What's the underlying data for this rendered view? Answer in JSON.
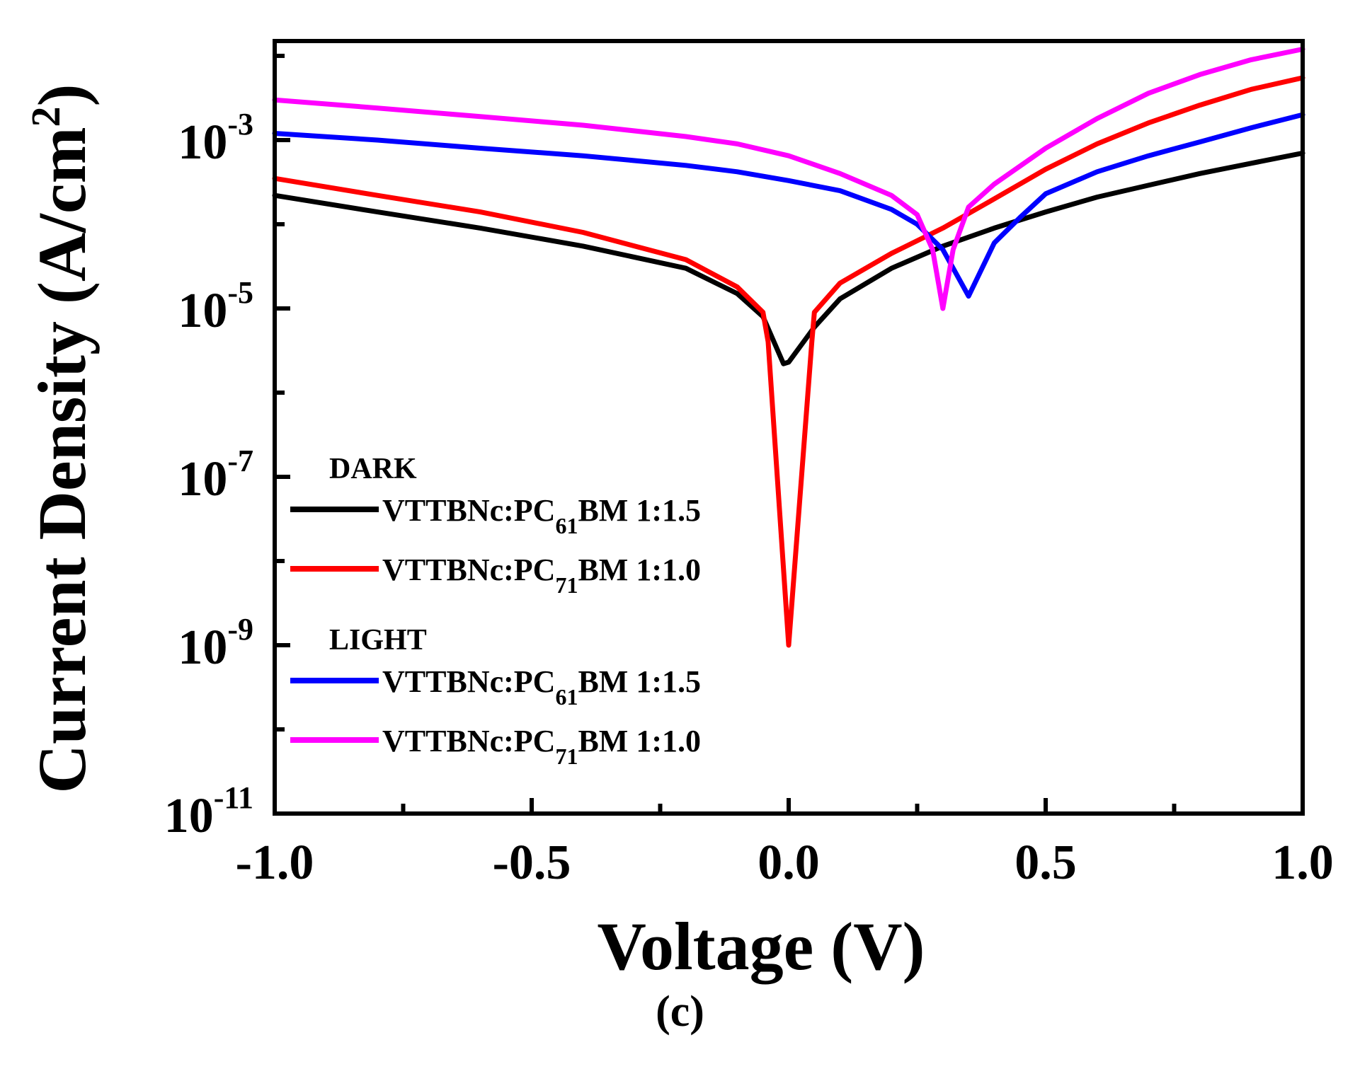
{
  "subfigure_label": "(c)",
  "chart_data": {
    "type": "line",
    "xlabel": "Voltage (V)",
    "ylabel": "Current Density (A/cm",
    "ylabel_sup": "2",
    "ylabel_close": ")",
    "xlim": [
      -1.0,
      1.0
    ],
    "ylim": [
      1e-11,
      0.015
    ],
    "yscale": "log",
    "x_ticks": [
      {
        "value": -1.0,
        "label": "-1.0"
      },
      {
        "value": -0.5,
        "label": "-0.5"
      },
      {
        "value": 0.0,
        "label": "0.0"
      },
      {
        "value": 0.5,
        "label": "0.5"
      },
      {
        "value": 1.0,
        "label": "1.0"
      }
    ],
    "y_ticks": [
      {
        "value": 1e-11,
        "base": "10",
        "exp": "-11"
      },
      {
        "value": 1e-09,
        "base": "10",
        "exp": "-9"
      },
      {
        "value": 1e-07,
        "base": "10",
        "exp": "-7"
      },
      {
        "value": 1e-05,
        "base": "10",
        "exp": "-5"
      },
      {
        "value": 0.001,
        "base": "10",
        "exp": "-3"
      }
    ],
    "legend": {
      "position": "bottom-left",
      "groups": [
        {
          "title": "DARK",
          "entries": [
            {
              "series": 0,
              "prefix": "VTTBNc:PC",
              "sub": "61",
              "suffix": "BM 1:1.5"
            },
            {
              "series": 1,
              "prefix": "VTTBNc:PC",
              "sub": "71",
              "suffix": "BM 1:1.0"
            }
          ]
        },
        {
          "title": "LIGHT",
          "entries": [
            {
              "series": 2,
              "prefix": "VTTBNc:PC",
              "sub": "61",
              "suffix": "BM 1:1.5"
            },
            {
              "series": 3,
              "prefix": "VTTBNc:PC",
              "sub": "71",
              "suffix": "BM 1:1.0"
            }
          ]
        }
      ]
    },
    "series": [
      {
        "name": "DARK VTTBNc:PC61BM 1:1.5",
        "color": "#000000",
        "x": [
          -1.0,
          -0.8,
          -0.6,
          -0.4,
          -0.2,
          -0.1,
          -0.05,
          -0.01,
          0.0,
          0.05,
          0.1,
          0.2,
          0.3,
          0.4,
          0.5,
          0.6,
          0.7,
          0.8,
          0.9,
          1.0
        ],
        "y": [
          0.00022,
          0.00014,
          9e-05,
          5.5e-05,
          3e-05,
          1.5e-05,
          8e-06,
          2.2e-06,
          2.3e-06,
          6e-06,
          1.3e-05,
          3e-05,
          5.5e-05,
          9e-05,
          0.00014,
          0.00021,
          0.00029,
          0.0004,
          0.00053,
          0.0007
        ]
      },
      {
        "name": "DARK VTTBNc:PC71BM 1:1.0",
        "color": "#ff0000",
        "x": [
          -1.0,
          -0.8,
          -0.6,
          -0.4,
          -0.2,
          -0.1,
          -0.05,
          -0.04,
          0.0,
          0.045,
          0.05,
          0.1,
          0.2,
          0.3,
          0.4,
          0.5,
          0.6,
          0.7,
          0.8,
          0.9,
          1.0
        ],
        "y": [
          0.00035,
          0.00022,
          0.00014,
          8e-05,
          3.8e-05,
          1.8e-05,
          9e-06,
          4e-06,
          1e-09,
          4e-06,
          9e-06,
          2e-05,
          4.5e-05,
          9e-05,
          0.0002,
          0.00045,
          0.0009,
          0.0016,
          0.0026,
          0.004,
          0.0055
        ]
      },
      {
        "name": "LIGHT VTTBNc:PC61BM 1:1.5",
        "color": "#0000ff",
        "x": [
          -1.0,
          -0.8,
          -0.6,
          -0.4,
          -0.2,
          -0.1,
          0.0,
          0.1,
          0.2,
          0.25,
          0.3,
          0.35,
          0.4,
          0.45,
          0.5,
          0.6,
          0.7,
          0.8,
          0.9,
          1.0
        ],
        "y": [
          0.0012,
          0.001,
          0.0008,
          0.00065,
          0.0005,
          0.00042,
          0.00033,
          0.00025,
          0.00015,
          0.0001,
          5e-05,
          1.4e-05,
          6e-05,
          0.00012,
          0.00023,
          0.00042,
          0.00065,
          0.00095,
          0.0014,
          0.002
        ]
      },
      {
        "name": "LIGHT VTTBNc:PC71BM 1:1.0",
        "color": "#ff00ff",
        "x": [
          -1.0,
          -0.8,
          -0.6,
          -0.4,
          -0.2,
          -0.1,
          0.0,
          0.1,
          0.2,
          0.25,
          0.28,
          0.3,
          0.32,
          0.35,
          0.4,
          0.5,
          0.6,
          0.7,
          0.8,
          0.9,
          1.0
        ],
        "y": [
          0.003,
          0.0024,
          0.0019,
          0.0015,
          0.0011,
          0.0009,
          0.00065,
          0.0004,
          0.00022,
          0.00013,
          5e-05,
          1e-05,
          5e-05,
          0.00016,
          0.0003,
          0.0008,
          0.0018,
          0.0036,
          0.006,
          0.009,
          0.012
        ]
      }
    ]
  }
}
